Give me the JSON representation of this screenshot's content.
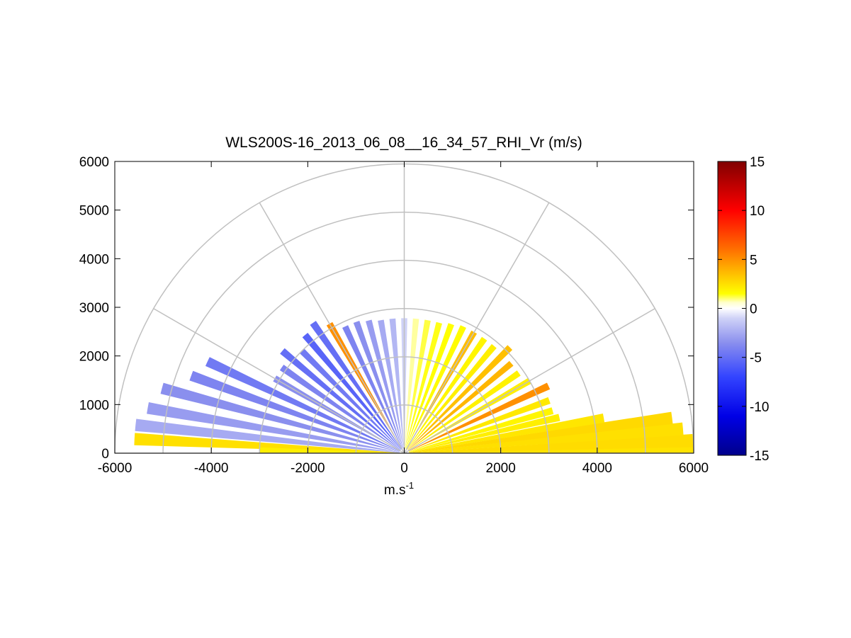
{
  "chart_data": {
    "type": "heatmap",
    "title": "WLS200S-16_2013_06_08__16_34_57_RHI_Vr (m/s)",
    "xlabel_base": "m.s",
    "xlabel_sup": "-1",
    "ylabel": "",
    "xlim": [
      -6000,
      6000
    ],
    "ylim": [
      0,
      6000
    ],
    "x_ticks": [
      "-6000",
      "-4000",
      "-2000",
      "0",
      "2000",
      "4000",
      "6000"
    ],
    "y_ticks": [
      "0",
      "1000",
      "2000",
      "3000",
      "4000",
      "5000",
      "6000"
    ],
    "polar_grid": {
      "range_rings": [
        1000,
        2000,
        3000,
        4000,
        5000,
        6000
      ],
      "spokes_deg": [
        0,
        30,
        60,
        90,
        120,
        150,
        180
      ]
    },
    "grid": true,
    "colorbar": {
      "min": -15,
      "max": 15,
      "ticks": [
        "15",
        "10",
        "5",
        "0",
        "-5",
        "-10",
        "-15"
      ],
      "tick_values": [
        15,
        10,
        5,
        0,
        -5,
        -10,
        -15
      ],
      "colormap": [
        {
          "v": -15,
          "color": "#00008b"
        },
        {
          "v": -11,
          "color": "#0000e6"
        },
        {
          "v": -7,
          "color": "#3344ff"
        },
        {
          "v": -3.5,
          "color": "#8a8fee"
        },
        {
          "v": -1,
          "color": "#cfd2f7"
        },
        {
          "v": 0,
          "color": "#ffffff"
        },
        {
          "v": 0.6,
          "color": "#ffffcc"
        },
        {
          "v": 1.5,
          "color": "#ffff00"
        },
        {
          "v": 3.5,
          "color": "#ffc000"
        },
        {
          "v": 6,
          "color": "#ff7000"
        },
        {
          "v": 10,
          "color": "#ff0000"
        },
        {
          "v": 15,
          "color": "#800000"
        }
      ]
    },
    "series": [
      {
        "elev_deg": 0.8,
        "r_min": 100,
        "r_max": 6000,
        "value": 2.4
      },
      {
        "elev_deg": 2.5,
        "r_min": 100,
        "r_max": 6000,
        "value": 2.6
      },
      {
        "elev_deg": 5,
        "r_min": 100,
        "r_max": 5800,
        "value": 2.5
      },
      {
        "elev_deg": 7.5,
        "r_min": 100,
        "r_max": 5600,
        "value": 2.7
      },
      {
        "elev_deg": 10,
        "r_min": 100,
        "r_max": 4200,
        "value": 2.3
      },
      {
        "elev_deg": 13,
        "r_min": 100,
        "r_max": 3300,
        "value": 2.0
      },
      {
        "elev_deg": 16,
        "r_min": 100,
        "r_max": 3200,
        "value": 1.8
      },
      {
        "elev_deg": 20,
        "r_min": 100,
        "r_max": 3200,
        "value": 2.2
      },
      {
        "elev_deg": 25,
        "r_min": 100,
        "r_max": 3300,
        "value": 5.0
      },
      {
        "elev_deg": 30,
        "r_min": 100,
        "r_max": 3000,
        "value": 2.0
      },
      {
        "elev_deg": 35,
        "r_min": 100,
        "r_max": 2900,
        "value": 1.9
      },
      {
        "elev_deg": 40,
        "r_min": 100,
        "r_max": 2900,
        "value": 3.8
      },
      {
        "elev_deg": 45,
        "r_min": 100,
        "r_max": 3100,
        "value": 3.5
      },
      {
        "elev_deg": 50,
        "r_min": 100,
        "r_max": 2900,
        "value": 2.0
      },
      {
        "elev_deg": 55,
        "r_min": 100,
        "r_max": 2900,
        "value": 1.8
      },
      {
        "elev_deg": 60,
        "r_min": 100,
        "r_max": 2900,
        "value": 3.6
      },
      {
        "elev_deg": 65,
        "r_min": 100,
        "r_max": 2900,
        "value": 1.6
      },
      {
        "elev_deg": 70,
        "r_min": 100,
        "r_max": 2850,
        "value": 1.5
      },
      {
        "elev_deg": 75,
        "r_min": 100,
        "r_max": 2800,
        "value": 1.4
      },
      {
        "elev_deg": 80,
        "r_min": 100,
        "r_max": 2800,
        "value": 1.2
      },
      {
        "elev_deg": 85,
        "r_min": 100,
        "r_max": 2800,
        "value": 0.8
      },
      {
        "elev_deg": 90,
        "r_min": 100,
        "r_max": 2800,
        "value": -1.0
      },
      {
        "elev_deg": 95,
        "r_min": 100,
        "r_max": 2800,
        "value": -2.0
      },
      {
        "elev_deg": 100,
        "r_min": 100,
        "r_max": 2800,
        "value": -2.5
      },
      {
        "elev_deg": 105,
        "r_min": 100,
        "r_max": 2850,
        "value": -3.0
      },
      {
        "elev_deg": 110,
        "r_min": 100,
        "r_max": 2900,
        "value": -3.5
      },
      {
        "elev_deg": 115,
        "r_min": 100,
        "r_max": 2900,
        "value": -4.0
      },
      {
        "elev_deg": 120,
        "r_min": 100,
        "r_max": 3100,
        "value": 5.0
      },
      {
        "elev_deg": 125,
        "r_min": 100,
        "r_max": 3300,
        "value": -5.0
      },
      {
        "elev_deg": 130,
        "r_min": 100,
        "r_max": 3200,
        "value": -5.5
      },
      {
        "elev_deg": 135,
        "r_min": 100,
        "r_max": 3000,
        "value": -4.5
      },
      {
        "elev_deg": 140,
        "r_min": 100,
        "r_max": 3300,
        "value": -5.0
      },
      {
        "elev_deg": 145,
        "r_min": 100,
        "r_max": 3100,
        "value": -4.0
      },
      {
        "elev_deg": 150,
        "r_min": 100,
        "r_max": 3100,
        "value": -3.5
      },
      {
        "elev_deg": 155,
        "r_min": 100,
        "r_max": 4500,
        "value": -4.5
      },
      {
        "elev_deg": 160,
        "r_min": 100,
        "r_max": 4700,
        "value": -4.0
      },
      {
        "elev_deg": 165,
        "r_min": 100,
        "r_max": 5200,
        "value": -3.5
      },
      {
        "elev_deg": 170,
        "r_min": 100,
        "r_max": 5400,
        "value": -3.0
      },
      {
        "elev_deg": 174,
        "r_min": 100,
        "r_max": 5600,
        "value": -2.5
      },
      {
        "elev_deg": 177,
        "r_min": 100,
        "r_max": 5600,
        "value": 2.5
      },
      {
        "elev_deg": 179,
        "r_min": 100,
        "r_max": 3000,
        "value": 2.0
      }
    ]
  }
}
